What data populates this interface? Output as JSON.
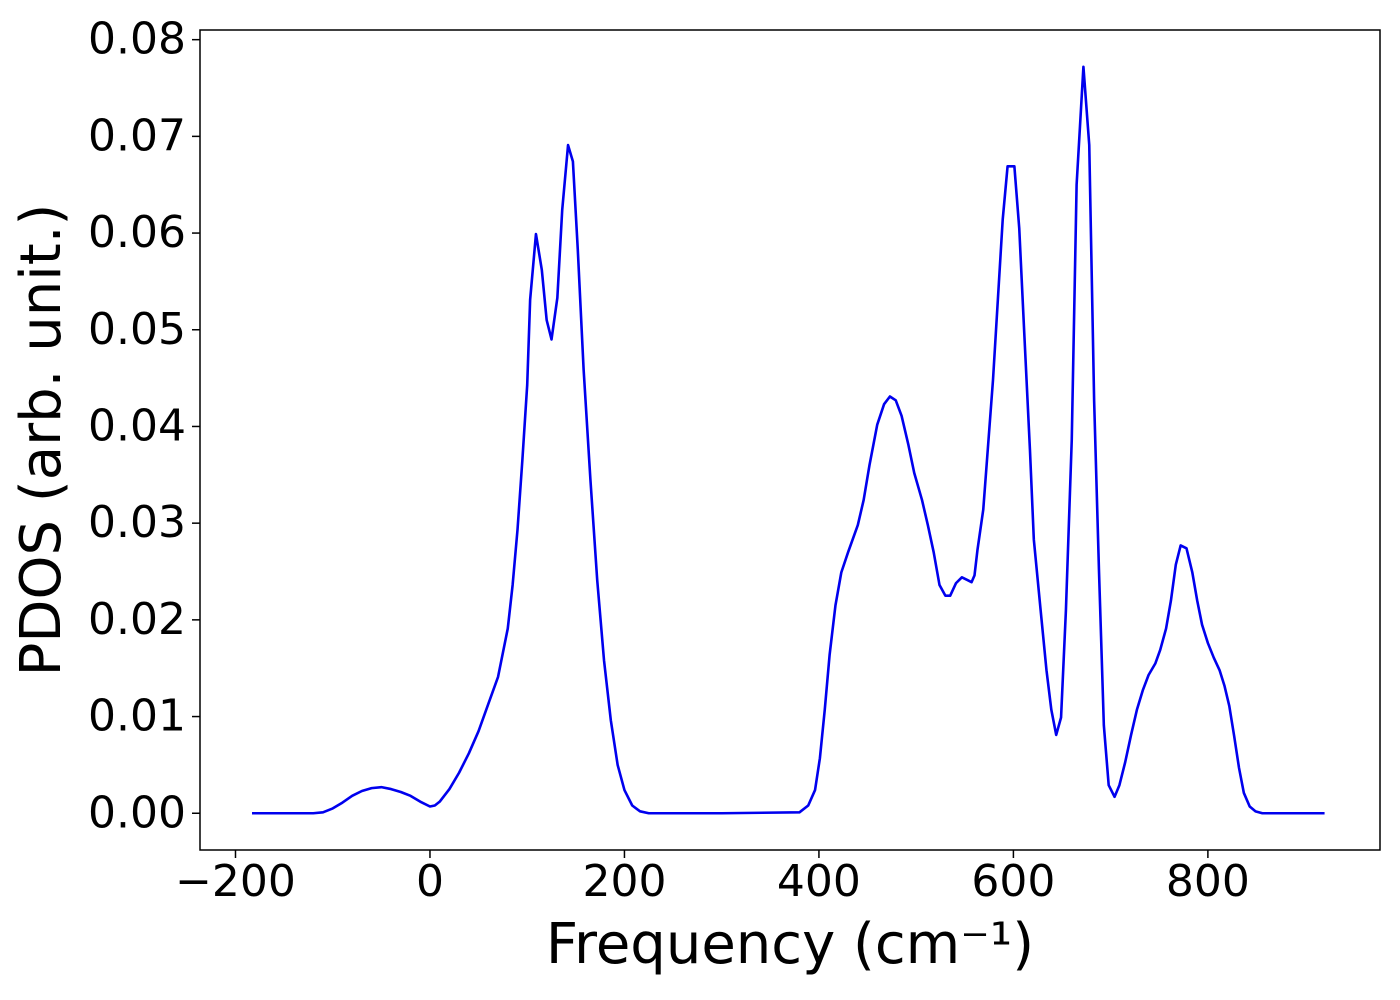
{
  "chart_data": {
    "type": "line",
    "x_label": "Frequency (cm⁻¹)",
    "y_label": "PDOS (arb. unit.)",
    "x": [
      -183,
      -150,
      -120,
      -110,
      -100,
      -90,
      -80,
      -70,
      -60,
      -50,
      -40,
      -30,
      -20,
      -10,
      0,
      5,
      10,
      20,
      30,
      40,
      50,
      60,
      70,
      80,
      85,
      90,
      95,
      100,
      103,
      109,
      115,
      120,
      125,
      131,
      136,
      142,
      147,
      152,
      158,
      165,
      172,
      179,
      186,
      193,
      200,
      208,
      216,
      225,
      300,
      380,
      389,
      396,
      401,
      406,
      411,
      417,
      423,
      430,
      440,
      446,
      452,
      460,
      467,
      473,
      479,
      485,
      492,
      498,
      506,
      512,
      518,
      524,
      530,
      535,
      541,
      547,
      553,
      557,
      560,
      563,
      569,
      574,
      579,
      584,
      589,
      594,
      601,
      606,
      611,
      617,
      621,
      628,
      634,
      639,
      644,
      649,
      654,
      660,
      665,
      672,
      678,
      683,
      688,
      693,
      698,
      704,
      709,
      715,
      721,
      727,
      733,
      739,
      746,
      751,
      757,
      762,
      767,
      772,
      778,
      784,
      789,
      794,
      800,
      806,
      812,
      817,
      822,
      827,
      832,
      837,
      843,
      849,
      856,
      920
    ],
    "values": [
      0,
      0,
      0,
      0.0001,
      0.0005,
      0.0011,
      0.0018,
      0.0023,
      0.0026,
      0.0027,
      0.0025,
      0.0022,
      0.0018,
      0.0012,
      0.0007,
      0.0008,
      0.0012,
      0.0025,
      0.0042,
      0.0062,
      0.0085,
      0.0113,
      0.0141,
      0.0191,
      0.0236,
      0.0293,
      0.0365,
      0.0443,
      0.0531,
      0.0599,
      0.0562,
      0.051,
      0.049,
      0.0533,
      0.0624,
      0.0691,
      0.0674,
      0.0583,
      0.0459,
      0.0345,
      0.0241,
      0.0158,
      0.0096,
      0.005,
      0.0024,
      0.0008,
      0.0002,
      0,
      0,
      0.0001,
      0.0008,
      0.0024,
      0.0057,
      0.0107,
      0.0164,
      0.0215,
      0.0249,
      0.027,
      0.0298,
      0.0324,
      0.036,
      0.0402,
      0.0423,
      0.0431,
      0.0427,
      0.0411,
      0.0381,
      0.0352,
      0.0324,
      0.0298,
      0.027,
      0.0236,
      0.0225,
      0.0225,
      0.0238,
      0.0244,
      0.0241,
      0.0239,
      0.0246,
      0.0272,
      0.0314,
      0.0381,
      0.0448,
      0.0531,
      0.0614,
      0.0669,
      0.0669,
      0.0605,
      0.05,
      0.0376,
      0.0283,
      0.021,
      0.0148,
      0.0107,
      0.0081,
      0.0099,
      0.021,
      0.0386,
      0.065,
      0.0772,
      0.0691,
      0.0427,
      0.0251,
      0.0091,
      0.0029,
      0.0017,
      0.0029,
      0.0053,
      0.0081,
      0.0107,
      0.0127,
      0.0143,
      0.0155,
      0.0169,
      0.0191,
      0.022,
      0.0257,
      0.0277,
      0.0274,
      0.0249,
      0.022,
      0.0195,
      0.0176,
      0.0161,
      0.0148,
      0.0132,
      0.0111,
      0.008,
      0.0047,
      0.0021,
      0.0007,
      0.0002,
      0,
      0
    ],
    "color": "#0000ee",
    "xlim": [
      -236.5,
      977
    ],
    "ylim": [
      -0.0038,
      0.081
    ],
    "xticks": [
      {
        "value": -200,
        "label": "−200"
      },
      0,
      200,
      400,
      600,
      800
    ],
    "yticks": [
      {
        "value": 0,
        "label": "0.00"
      },
      {
        "value": 0.01,
        "label": "0.01"
      },
      {
        "value": 0.02,
        "label": "0.02"
      },
      {
        "value": 0.03,
        "label": "0.03"
      },
      {
        "value": 0.04,
        "label": "0.04"
      },
      {
        "value": 0.05,
        "label": "0.05"
      },
      {
        "value": 0.06,
        "label": "0.06"
      },
      {
        "value": 0.07,
        "label": "0.07"
      },
      {
        "value": 0.08,
        "label": "0.08"
      }
    ],
    "grid": false
  }
}
